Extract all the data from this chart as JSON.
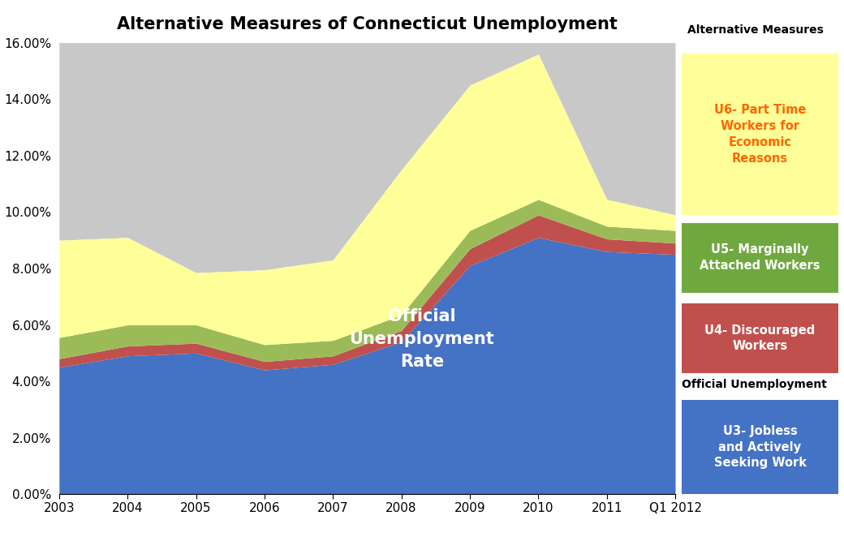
{
  "title": "Alternative Measures of Connecticut Unemployment",
  "x_labels": [
    "2003",
    "2004",
    "2005",
    "2006",
    "2007",
    "2008",
    "2009",
    "2010",
    "2011",
    "Q1 2012"
  ],
  "x_values": [
    0,
    1,
    2,
    3,
    4,
    5,
    6,
    7,
    8,
    9
  ],
  "u3": [
    4.5,
    4.9,
    5.0,
    4.4,
    4.6,
    5.4,
    8.1,
    9.1,
    8.6,
    8.5
  ],
  "u4_add": [
    0.3,
    0.35,
    0.35,
    0.3,
    0.3,
    0.4,
    0.6,
    0.8,
    0.45,
    0.4
  ],
  "u5_add": [
    0.75,
    0.75,
    0.65,
    0.6,
    0.55,
    0.55,
    0.65,
    0.55,
    0.45,
    0.45
  ],
  "u6_total": [
    9.0,
    9.1,
    7.85,
    7.95,
    8.3,
    11.5,
    14.5,
    15.6,
    10.45,
    9.9
  ],
  "gray_top": [
    16.0,
    16.0,
    16.0,
    16.0,
    16.0,
    16.0,
    16.0,
    16.0,
    16.0,
    16.0
  ],
  "color_u3": "#4472C4",
  "color_u4": "#C0504D",
  "color_u5": "#9BBB59",
  "color_u6": "#FFFF99",
  "color_gray": "#C8C8C8",
  "color_bg": "#FFFFFF",
  "label_u6": "U6- Part Time\nWorkers for\nEconomic\nReasons",
  "label_u5": "U5- Marginally\nAttached Workers",
  "label_u4": "U4- Discouraged\nWorkers",
  "label_u3": "U3- Jobless\nand Actively\nSeeking Work",
  "legend_alt": "Alternative Measures",
  "legend_official": "Official Unemployment",
  "annotation": "Official\nUnemployment\nRate",
  "ylim": [
    0.0,
    0.16
  ],
  "yticks": [
    0.0,
    0.02,
    0.04,
    0.06,
    0.08,
    0.1,
    0.12,
    0.14,
    0.16
  ],
  "ytick_labels": [
    "0.00%",
    "2.00%",
    "4.00%",
    "6.00%",
    "8.00%",
    "10.00%",
    "12.00%",
    "14.00%",
    "16.00%"
  ]
}
